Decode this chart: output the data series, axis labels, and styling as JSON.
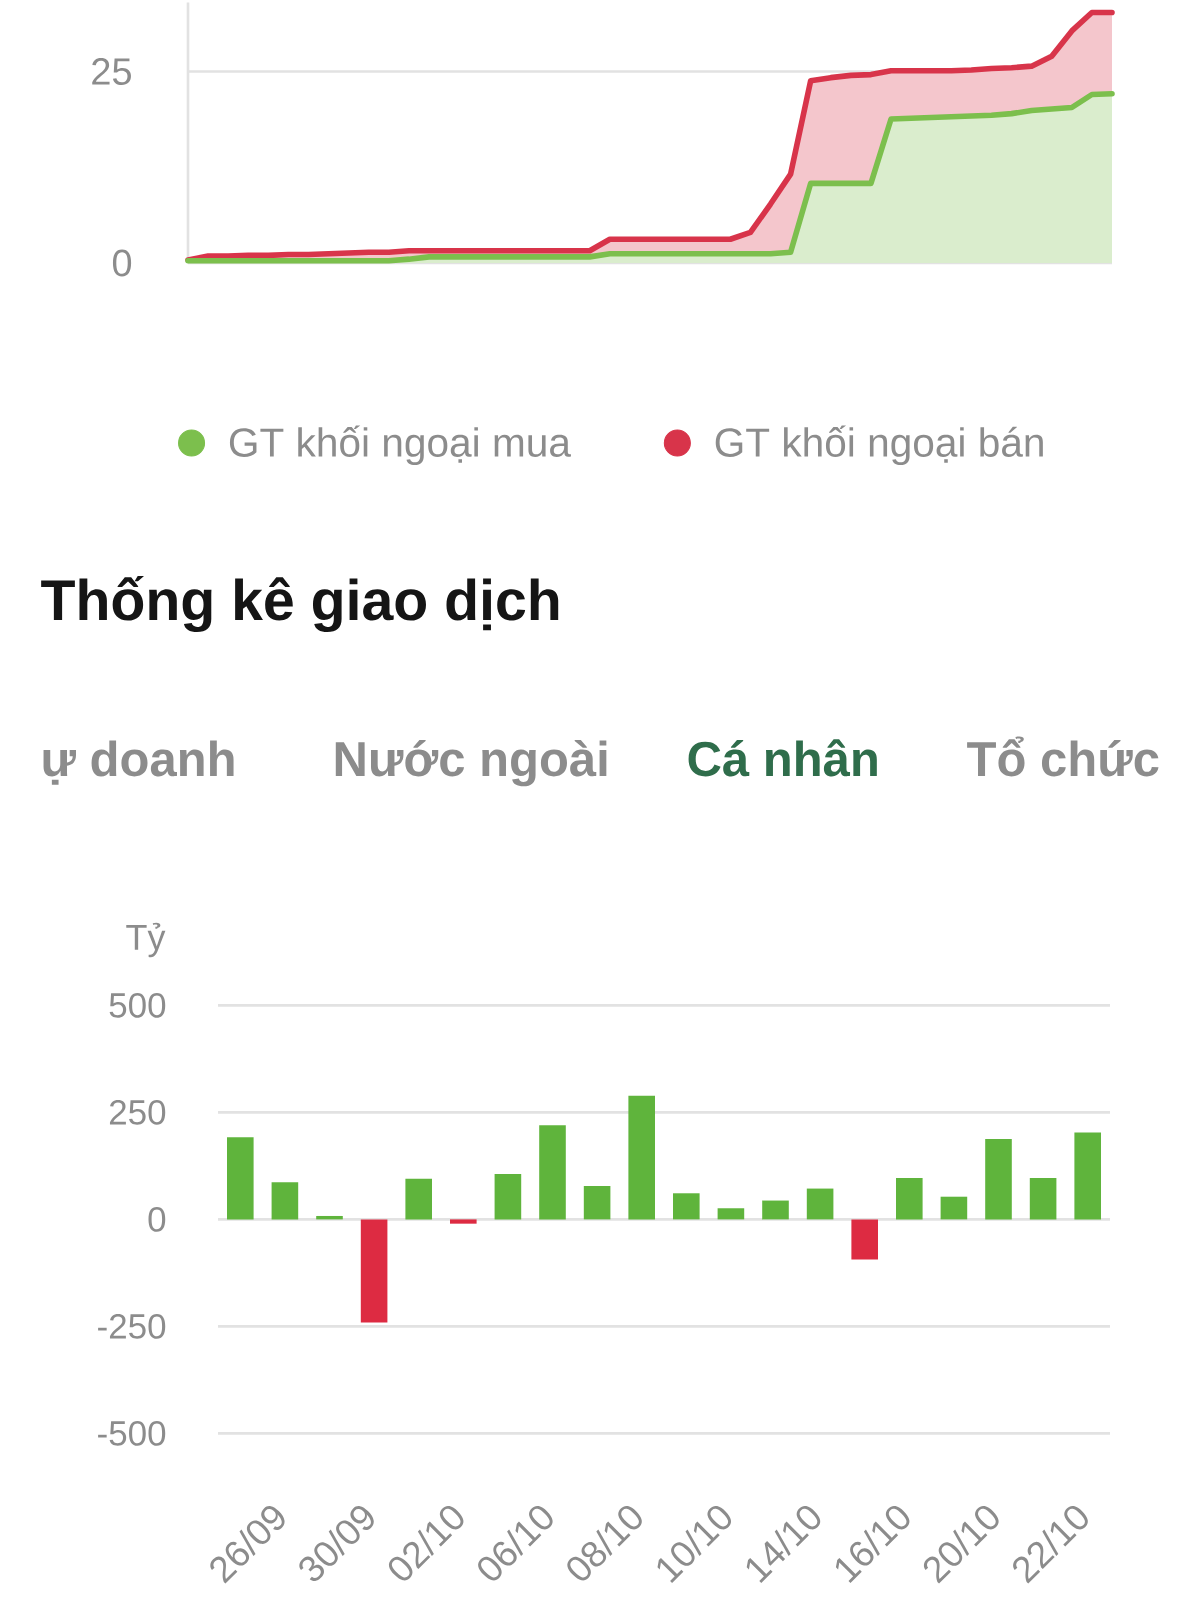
{
  "chart_data": [
    {
      "type": "area",
      "categories": [
        null,
        null,
        null,
        null,
        null,
        null,
        null,
        null,
        null,
        null,
        null,
        null,
        null,
        null,
        null,
        null,
        null,
        null,
        null,
        null,
        null,
        null,
        null,
        null,
        null,
        null,
        null,
        null,
        null,
        null,
        null,
        null,
        null,
        null,
        null,
        null,
        null,
        null,
        null,
        null,
        null,
        null,
        null,
        null,
        null,
        null,
        null
      ],
      "series": [
        {
          "name": "GT khối ngoại mua",
          "color": "#7cbf4d",
          "values": [
            0.3,
            0.3,
            0.3,
            0.3,
            0.3,
            0.3,
            0.3,
            0.3,
            0.3,
            0.3,
            0.3,
            0.5,
            0.8,
            0.8,
            0.8,
            0.8,
            0.8,
            0.8,
            0.8,
            0.8,
            0.8,
            1.2,
            1.2,
            1.2,
            1.2,
            1.2,
            1.2,
            1.2,
            1.2,
            1.2,
            1.4,
            10.4,
            10.4,
            10.4,
            10.4,
            18.8,
            18.9,
            19.0,
            19.1,
            19.2,
            19.3,
            19.5,
            19.9,
            20.1,
            20.3,
            22.0,
            22.1
          ]
        },
        {
          "name": "GT khối ngoại bán",
          "color": "#d8344a",
          "values": [
            0.4,
            0.9,
            0.9,
            1.0,
            1.0,
            1.1,
            1.1,
            1.2,
            1.3,
            1.4,
            1.4,
            1.6,
            1.6,
            1.6,
            1.6,
            1.6,
            1.6,
            1.6,
            1.6,
            1.6,
            1.6,
            3.1,
            3.1,
            3.1,
            3.1,
            3.1,
            3.1,
            3.1,
            4.0,
            7.7,
            11.6,
            23.8,
            24.2,
            24.5,
            24.6,
            25.1,
            25.1,
            25.1,
            25.1,
            25.2,
            25.4,
            25.5,
            25.7,
            27.0,
            30.3,
            32.7,
            32.7
          ]
        }
      ],
      "ylim": [
        0,
        34
      ],
      "yticks": [
        0,
        25
      ],
      "grid": "y",
      "legend": "bottom"
    },
    {
      "type": "bar",
      "title": "Thống kê giao dịch",
      "ylabel": "Tỷ",
      "annotations": [
        "ự doanh",
        "Nước ngoài",
        "Cá nhân",
        "Tổ chức"
      ],
      "categories": [
        null,
        "26/09",
        null,
        "30/09",
        null,
        "02/10",
        null,
        "06/10",
        null,
        "08/10",
        null,
        "10/10",
        null,
        "14/10",
        null,
        "16/10",
        null,
        "20/10",
        null,
        "22/10"
      ],
      "values": [
        192,
        87,
        8,
        -241,
        95,
        -10,
        106,
        220,
        78,
        289,
        61,
        26,
        44,
        72,
        -94,
        97,
        53,
        188,
        97,
        203
      ],
      "colors": [
        "#5fb43c",
        "#5fb43c",
        "#5fb43c",
        "#dd2b42",
        "#5fb43c",
        "#dd2b42",
        "#5fb43c",
        "#5fb43c",
        "#5fb43c",
        "#5fb43c",
        "#5fb43c",
        "#5fb43c",
        "#5fb43c",
        "#5fb43c",
        "#dd2b42",
        "#5fb43c",
        "#5fb43c",
        "#5fb43c",
        "#5fb43c",
        "#5fb43c"
      ],
      "ylim": [
        -500,
        500
      ],
      "yticks": [
        -500,
        -250,
        0,
        250,
        500
      ],
      "grid": "y"
    }
  ]
}
